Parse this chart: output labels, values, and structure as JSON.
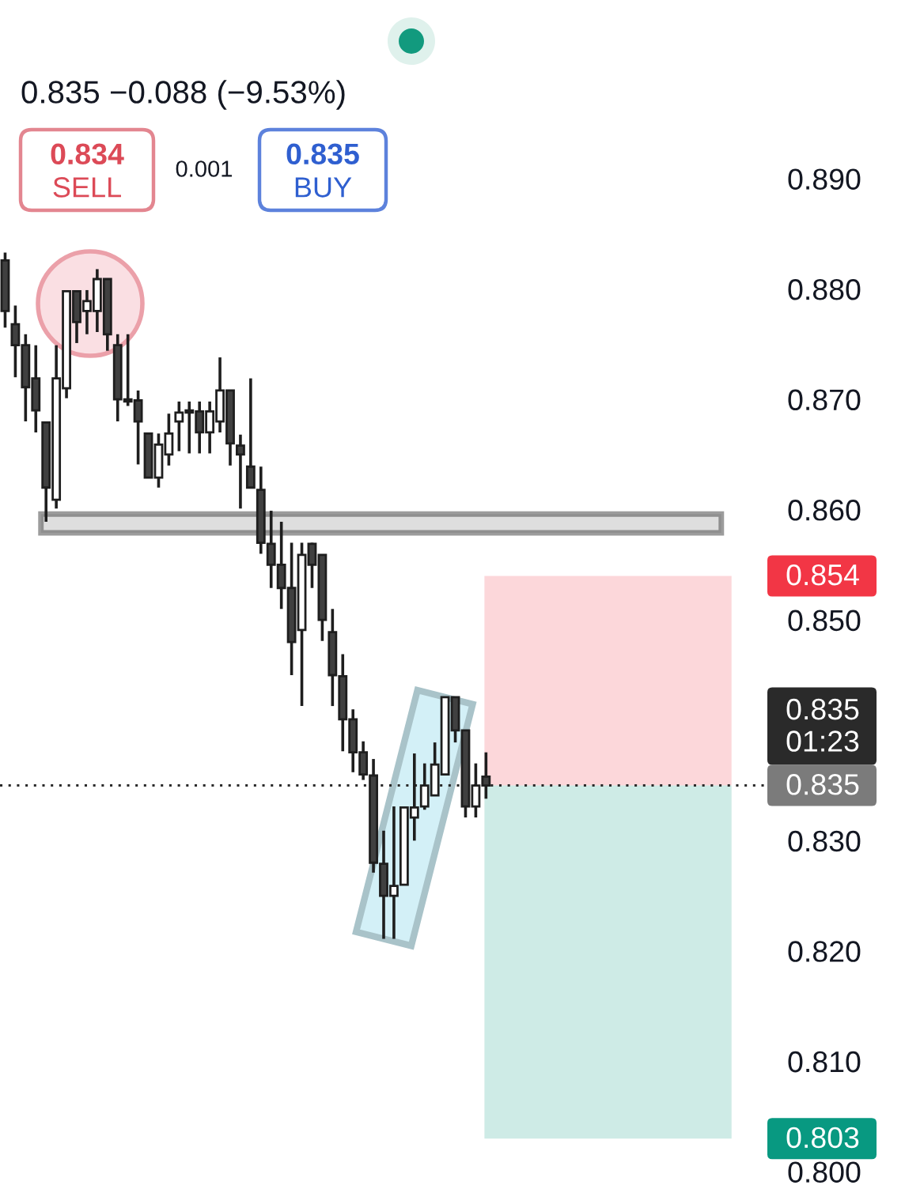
{
  "chart_data": {
    "type": "candlestick",
    "subtitle": "0.835 −0.088 (−9.53%)",
    "categories": [
      null,
      null,
      null,
      null,
      null,
      null,
      null,
      null,
      null,
      null,
      null,
      null,
      null,
      null,
      null,
      null,
      null,
      null,
      null,
      null,
      null,
      null,
      null,
      null,
      null,
      null,
      null,
      null,
      null,
      null,
      null,
      null,
      null,
      null,
      null,
      null,
      null,
      null,
      null,
      null,
      null,
      null,
      null,
      null,
      null,
      null,
      null,
      null,
      null,
      null,
      null,
      null,
      null,
      null,
      null,
      null,
      null,
      null,
      null,
      null,
      null,
      null,
      null,
      null,
      null,
      null,
      null,
      null,
      null,
      null,
      null,
      null,
      null,
      null,
      null
    ],
    "ohlc": [
      [
        0.8826,
        0.8833,
        0.8765,
        0.878
      ],
      [
        0.8768,
        0.8785,
        0.872,
        0.8749
      ],
      [
        0.8749,
        0.8759,
        0.868,
        0.8711
      ],
      [
        0.8719,
        0.8749,
        0.867,
        0.869
      ],
      [
        0.8679,
        0.8679,
        0.8589,
        0.862
      ],
      [
        0.8609,
        0.8749,
        0.8601,
        0.8719
      ],
      [
        0.871,
        0.8798,
        0.8701,
        0.8798
      ],
      [
        0.8798,
        0.8798,
        0.8751,
        0.877
      ],
      [
        0.878,
        0.8799,
        0.8759,
        0.8789
      ],
      [
        0.878,
        0.8818,
        0.8761,
        0.8809
      ],
      [
        0.8809,
        0.8809,
        0.8744,
        0.8759
      ],
      [
        0.8749,
        0.8759,
        0.868,
        0.87
      ],
      [
        0.87,
        0.8759,
        0.8694,
        0.8698
      ],
      [
        0.8699,
        0.8708,
        0.8641,
        0.868
      ],
      [
        0.8669,
        0.8669,
        0.8629,
        0.8629
      ],
      [
        0.8629,
        0.8669,
        0.862,
        0.8659
      ],
      [
        0.865,
        0.8687,
        0.864,
        0.8669
      ],
      [
        0.868,
        0.8698,
        0.8653,
        0.8688
      ],
      [
        0.869,
        0.8698,
        0.8651,
        0.8688
      ],
      [
        0.8689,
        0.8698,
        0.8651,
        0.867
      ],
      [
        0.867,
        0.8698,
        0.8651,
        0.8689
      ],
      [
        0.868,
        0.8738,
        0.867,
        0.8708
      ],
      [
        0.8708,
        0.8708,
        0.864,
        0.866
      ],
      [
        0.8658,
        0.8668,
        0.8601,
        0.865
      ],
      [
        0.8639,
        0.8719,
        0.862,
        0.862
      ],
      [
        0.8618,
        0.8639,
        0.856,
        0.857
      ],
      [
        0.8569,
        0.8599,
        0.8529,
        0.855
      ],
      [
        0.855,
        0.8589,
        0.851,
        0.8529
      ],
      [
        0.8529,
        0.857,
        0.845,
        0.848
      ],
      [
        0.8491,
        0.857,
        0.8422,
        0.8559
      ],
      [
        0.8569,
        0.857,
        0.8529,
        0.855
      ],
      [
        0.8559,
        0.8559,
        0.8481,
        0.85
      ],
      [
        0.8489,
        0.851,
        0.8422,
        0.845
      ],
      [
        0.8449,
        0.8469,
        0.8381,
        0.841
      ],
      [
        0.841,
        0.8419,
        0.8362,
        0.838
      ],
      [
        0.838,
        0.839,
        0.8355,
        0.836
      ],
      [
        0.8359,
        0.8374,
        0.8271,
        0.828
      ],
      [
        0.8279,
        0.8309,
        0.8211,
        0.825
      ],
      [
        0.825,
        0.8331,
        0.8211,
        0.8259
      ],
      [
        0.826,
        0.833,
        0.826,
        0.833
      ],
      [
        0.8321,
        0.8379,
        0.83,
        0.833
      ],
      [
        0.8331,
        0.837,
        0.8328,
        0.835
      ],
      [
        0.8341,
        0.8389,
        0.8341,
        0.8369
      ],
      [
        0.836,
        0.843,
        0.836,
        0.843
      ],
      [
        0.843,
        0.843,
        0.8389,
        0.84
      ],
      [
        0.84,
        0.84,
        0.8321,
        0.8331
      ],
      [
        0.8331,
        0.837,
        0.8321,
        0.835
      ],
      [
        0.8358,
        0.838,
        0.8338,
        0.835
      ],
      null,
      null,
      null,
      null,
      null,
      null,
      null,
      null,
      null,
      null,
      null,
      null,
      null,
      null,
      null,
      null,
      null,
      null,
      null,
      null,
      null,
      null,
      null,
      null,
      null,
      null,
      null
    ],
    "colors": [
      "#404040",
      "#404040",
      "#404040",
      "#404040",
      "#404040",
      "#ffffff",
      "#ffffff",
      "#404040",
      "#ffffff",
      "#ffffff",
      "#404040",
      "#404040",
      "#404040",
      "#404040",
      "#404040",
      "#ffffff",
      "#ffffff",
      "#ffffff",
      "#404040",
      "#404040",
      "#ffffff",
      "#ffffff",
      "#404040",
      "#404040",
      "#404040",
      "#404040",
      "#404040",
      "#404040",
      "#404040",
      "#ffffff",
      "#404040",
      "#404040",
      "#404040",
      "#404040",
      "#404040",
      "#404040",
      "#404040",
      "#404040",
      "#ffffff",
      "#ffffff",
      "#ffffff",
      "#ffffff",
      "#ffffff",
      "#ffffff",
      "#404040",
      "#404040",
      "#ffffff",
      "#404040",
      null,
      null,
      null,
      null,
      null,
      null,
      null,
      null,
      null,
      null,
      null,
      null,
      null,
      null,
      null,
      null,
      null,
      null,
      null,
      null,
      null,
      null,
      null,
      null,
      null,
      null,
      null
    ],
    "ylim": [
      0.8,
      0.89
    ],
    "yticks": [
      {
        "value": 0.89,
        "label": "0.890"
      },
      {
        "value": 0.88,
        "label": "0.880"
      },
      {
        "value": 0.87,
        "label": "0.870"
      },
      {
        "value": 0.86,
        "label": "0.860"
      },
      {
        "value": 0.85,
        "label": "0.850"
      },
      {
        "value": 0.83,
        "label": "0.830"
      },
      {
        "value": 0.82,
        "label": "0.820"
      },
      {
        "value": 0.81,
        "label": "0.810"
      },
      {
        "value": 0.8,
        "label": "0.800"
      }
    ],
    "tick_labels": "y",
    "bands": [
      {
        "axis": "y",
        "from": 0.835,
        "to": 0.854,
        "label": "0.854",
        "color": "#f23645"
      },
      {
        "axis": "y",
        "from": 0.835,
        "to": 0.803,
        "label": "0.803",
        "color": "#089981"
      },
      {
        "axis": "y",
        "from": 0.8579,
        "to": 0.8596,
        "color": "#5a5a5a"
      }
    ],
    "ref_lines": [
      {
        "axis": "y",
        "value": 0.835,
        "label": "0.835\n01:23",
        "line_style": "dotted",
        "color": "#2a2a2a"
      }
    ],
    "annotations": [
      "0.834\nSELL",
      "0.001",
      "0.835\nBUY",
      "0.835"
    ]
  }
}
